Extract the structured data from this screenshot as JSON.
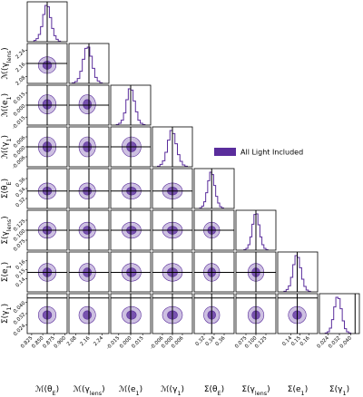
{
  "chart_data": {
    "type": "corner",
    "series": [
      {
        "name": "All Light Included",
        "color": "#5a2d9c"
      }
    ],
    "hist_ylim": [
      0,
      66
    ],
    "parameters": [
      {
        "label": [
          "ℳ(θ",
          "E",
          ")"
        ],
        "lim": [
          0.815,
          0.905
        ],
        "ticks": [
          0.825,
          {
            "value": 0.85,
            "label": "0.850"
          },
          0.875,
          {
            "value": 0.9,
            "label": "0.900"
          }
        ],
        "truth": 0.86,
        "mean": 0.86,
        "sigma": 0.01,
        "bins": [
          0.83,
          0.835,
          0.84,
          0.845,
          0.85,
          0.855,
          0.86,
          0.865,
          0.87,
          0.875,
          0.88,
          0.885,
          0.89
        ],
        "counts": [
          2,
          5,
          12,
          25,
          45,
          60,
          58,
          40,
          22,
          10,
          4,
          1
        ]
      },
      {
        "label": [
          "ℳ(γ",
          "lens",
          ")"
        ],
        "lim": [
          2.04,
          2.28
        ],
        "ticks": [
          2.08,
          2.16,
          2.24
        ],
        "truth": 2.16,
        "mean": 2.15,
        "sigma": 0.025,
        "bins": [
          2.06,
          2.075,
          2.09,
          2.105,
          2.12,
          2.135,
          2.15,
          2.165,
          2.18,
          2.195,
          2.21,
          2.225,
          2.24
        ],
        "counts": [
          1,
          3,
          8,
          20,
          40,
          58,
          60,
          45,
          25,
          10,
          4,
          1
        ]
      },
      {
        "label": [
          "ℳ(e",
          "1",
          ")"
        ],
        "lim": [
          -0.025,
          0.025
        ],
        "ticks": [
          -0.015,
          {
            "value": 0,
            "label": "0.000"
          },
          0.015
        ],
        "truth": 0,
        "mean": 0.001,
        "sigma": 0.006,
        "bins": [
          -0.018,
          -0.015,
          -0.012,
          -0.009,
          -0.006,
          -0.003,
          0,
          0.003,
          0.006,
          0.009,
          0.012,
          0.015,
          0.018
        ],
        "counts": [
          1,
          3,
          8,
          20,
          42,
          60,
          58,
          40,
          22,
          8,
          3,
          1
        ]
      },
      {
        "label": [
          "ℳ(γ",
          "1",
          ")"
        ],
        "lim": [
          -0.012,
          0.012
        ],
        "ticks": [
          -0.006,
          {
            "value": 0,
            "label": "0.000"
          },
          0.006
        ],
        "truth": 0,
        "mean": 0,
        "sigma": 0.003,
        "bins": [
          -0.009,
          -0.0075,
          -0.006,
          -0.0045,
          -0.003,
          -0.0015,
          0,
          0.0015,
          0.003,
          0.0045,
          0.006,
          0.0075,
          0.009
        ],
        "counts": [
          1,
          4,
          10,
          24,
          44,
          60,
          55,
          38,
          20,
          9,
          3,
          1
        ]
      },
      {
        "label": [
          "Σ(θ",
          "E",
          ")"
        ],
        "lim": [
          0.3,
          0.38
        ],
        "ticks": [
          0.32,
          0.34,
          0.36
        ],
        "truth": 0.335,
        "mean": 0.335,
        "sigma": 0.008,
        "bins": [
          0.311,
          0.315,
          0.319,
          0.323,
          0.327,
          0.331,
          0.335,
          0.339,
          0.343,
          0.347,
          0.351,
          0.355,
          0.359
        ],
        "counts": [
          1,
          4,
          11,
          26,
          46,
          60,
          56,
          38,
          20,
          9,
          3,
          1
        ]
      },
      {
        "label": [
          "Σ(γ",
          "lens",
          ")"
        ],
        "lim": [
          0.05,
          0.15
        ],
        "ticks": [
          0.075,
          {
            "value": 0.1,
            "label": "0.100"
          },
          0.125
        ],
        "truth": 0.1,
        "mean": 0.1,
        "sigma": 0.01,
        "bins": [
          0.07,
          0.075,
          0.08,
          0.085,
          0.09,
          0.095,
          0.1,
          0.105,
          0.11,
          0.115,
          0.12,
          0.125,
          0.13
        ],
        "counts": [
          1,
          3,
          9,
          22,
          43,
          59,
          60,
          42,
          22,
          9,
          3,
          1
        ]
      },
      {
        "label": [
          "Σ(e",
          "1",
          ")"
        ],
        "lim": [
          0.125,
          0.17
        ],
        "ticks": [
          0.14,
          0.15,
          0.16
        ],
        "truth": 0.147,
        "mean": 0.147,
        "sigma": 0.005,
        "bins": [
          0.132,
          0.1345,
          0.137,
          0.1395,
          0.142,
          0.1445,
          0.147,
          0.1495,
          0.152,
          0.1545,
          0.157,
          0.1595,
          0.162
        ],
        "counts": [
          1,
          4,
          10,
          24,
          45,
          60,
          57,
          40,
          21,
          9,
          3,
          1
        ]
      },
      {
        "label": [
          "Σ(γ",
          "1",
          ")"
        ],
        "lim": [
          0.018,
          0.046
        ],
        "ticks": [
          0.024,
          0.032,
          {
            "value": 0.04,
            "label": "0.040"
          }
        ],
        "truth": 0.043,
        "mean": 0.031,
        "sigma": 0.003,
        "bins": [
          0.022,
          0.0235,
          0.025,
          0.0265,
          0.028,
          0.0295,
          0.031,
          0.0325,
          0.034,
          0.0355,
          0.037,
          0.0385,
          0.04
        ],
        "counts": [
          1,
          3,
          9,
          23,
          44,
          60,
          58,
          41,
          21,
          8,
          3,
          1
        ]
      }
    ]
  }
}
